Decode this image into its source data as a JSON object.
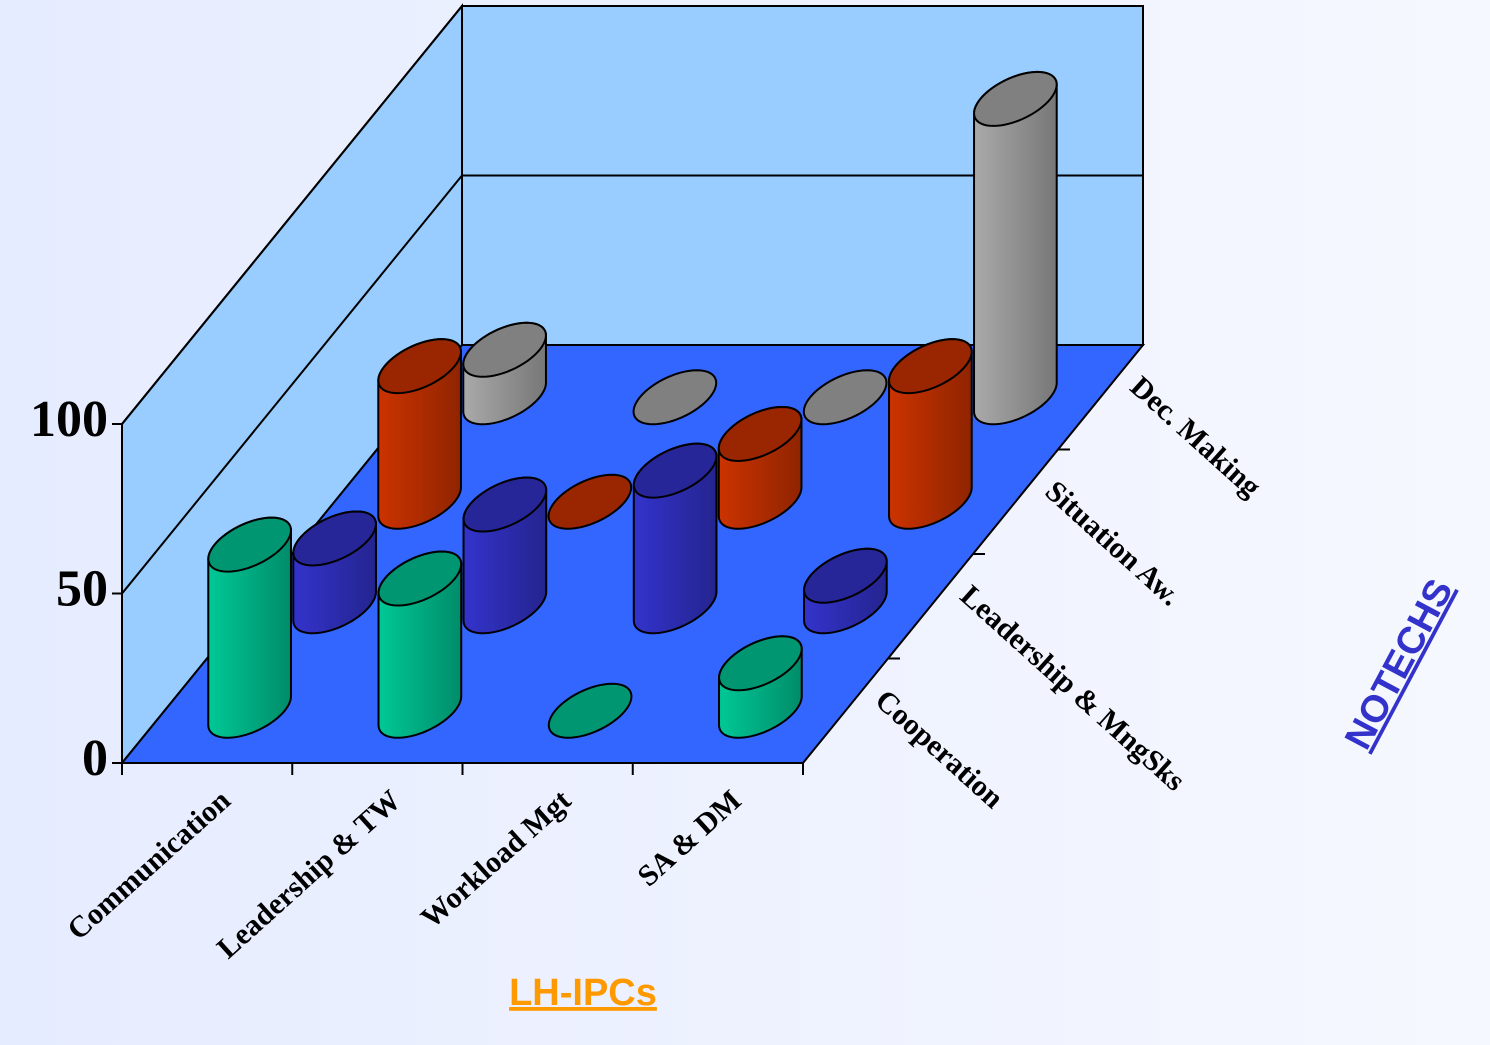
{
  "chart_data": {
    "type": "bar3d",
    "categories": [
      "Communication",
      "Leadership & TW",
      "Workload Mgt",
      "SA & DM"
    ],
    "series": [
      {
        "name": "Cooperation",
        "color": "#00c896",
        "values": [
          49,
          39,
          0,
          14
        ]
      },
      {
        "name": "Leadership & MngSks",
        "color": "#3333cc",
        "values": [
          20,
          30,
          40,
          9
        ]
      },
      {
        "name": "Situation Aw.",
        "color": "#cc3300",
        "values": [
          40,
          0,
          20,
          40
        ]
      },
      {
        "name": "Dec. Making",
        "color": "#aaaaaa",
        "values": [
          14,
          0,
          0,
          88
        ]
      }
    ],
    "ylim": [
      0,
      100
    ],
    "yticks": [
      0,
      50,
      100
    ],
    "grid": true,
    "x_label": "LH-IPCs",
    "z_label": "NOTECHS"
  }
}
